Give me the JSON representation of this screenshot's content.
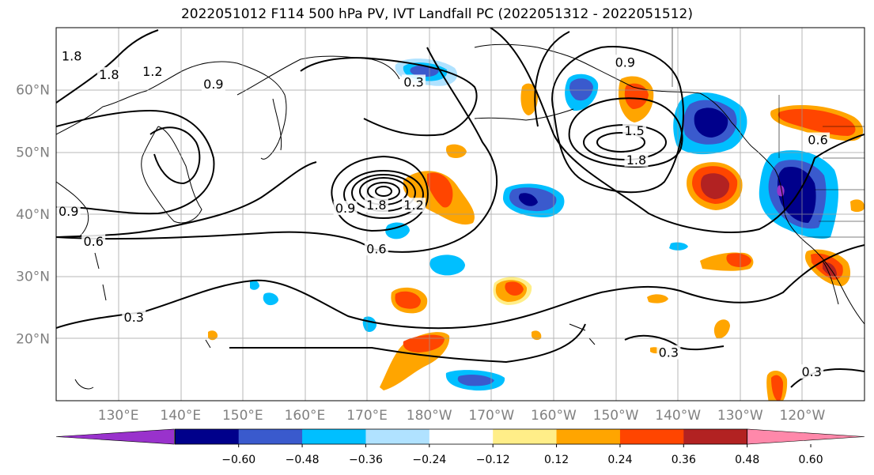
{
  "title": "2022051012 F114 500 hPa PV, IVT Landfall PC (2022051312 - 2022051512)",
  "map": {
    "lon_range": [
      120,
      250
    ],
    "lat_range": [
      10,
      70
    ],
    "lat_ticks": [
      {
        "lat": 20,
        "label": "20°N"
      },
      {
        "lat": 30,
        "label": "30°N"
      },
      {
        "lat": 40,
        "label": "40°N"
      },
      {
        "lat": 50,
        "label": "50°N"
      },
      {
        "lat": 60,
        "label": "60°N"
      }
    ],
    "lon_ticks": [
      {
        "lon": 130,
        "label": "130°E"
      },
      {
        "lon": 140,
        "label": "140°E"
      },
      {
        "lon": 150,
        "label": "150°E"
      },
      {
        "lon": 160,
        "label": "160°E"
      },
      {
        "lon": 170,
        "label": "170°E"
      },
      {
        "lon": 180,
        "label": "180°W"
      },
      {
        "lon": 190,
        "label": "170°W"
      },
      {
        "lon": 200,
        "label": "160°W"
      },
      {
        "lon": 210,
        "label": "150°W"
      },
      {
        "lon": 220,
        "label": "140°W"
      },
      {
        "lon": 230,
        "label": "130°W"
      },
      {
        "lon": 240,
        "label": "120°W"
      }
    ],
    "contour_labels": [
      {
        "text": "1.8",
        "lon": 122.5,
        "lat": 65.5
      },
      {
        "text": "1.8",
        "lon": 128.5,
        "lat": 62.5
      },
      {
        "text": "1.2",
        "lon": 135.5,
        "lat": 63
      },
      {
        "text": "0.9",
        "lon": 145.3,
        "lat": 61
      },
      {
        "text": "0.3",
        "lon": 177.5,
        "lat": 61.3
      },
      {
        "text": "0.9",
        "lon": 211.5,
        "lat": 64.5
      },
      {
        "text": "1.5",
        "lon": 213,
        "lat": 53.5
      },
      {
        "text": "1.8",
        "lon": 213.3,
        "lat": 48.8
      },
      {
        "text": "0.6",
        "lon": 242.5,
        "lat": 52
      },
      {
        "text": "0.6",
        "lon": 126,
        "lat": 35.7
      },
      {
        "text": "0.9",
        "lon": 122,
        "lat": 40.5
      },
      {
        "text": "0.9",
        "lon": 166.5,
        "lat": 41
      },
      {
        "text": "1.8",
        "lon": 171.5,
        "lat": 41.5
      },
      {
        "text": "1.2",
        "lon": 177.5,
        "lat": 41.5
      },
      {
        "text": "0.6",
        "lon": 171.5,
        "lat": 34.5
      },
      {
        "text": "0.3",
        "lon": 132.5,
        "lat": 23.5
      },
      {
        "text": "0.3",
        "lon": 218.5,
        "lat": 17.8
      },
      {
        "text": "0.3",
        "lon": 241.5,
        "lat": 14.7
      }
    ]
  },
  "colorbar": {
    "colors": [
      "#9932cc",
      "#00008b",
      "#3a5acd",
      "#00bfff",
      "#b0e2ff",
      "#ffffff",
      "#ffee88",
      "#ffa500",
      "#ff4500",
      "#b22222",
      "#ff88aa"
    ],
    "ticks": [
      "−0.60",
      "−0.48",
      "−0.36",
      "−0.24",
      "−0.12",
      "0.12",
      "0.24",
      "0.36",
      "0.48",
      "0.60"
    ]
  }
}
